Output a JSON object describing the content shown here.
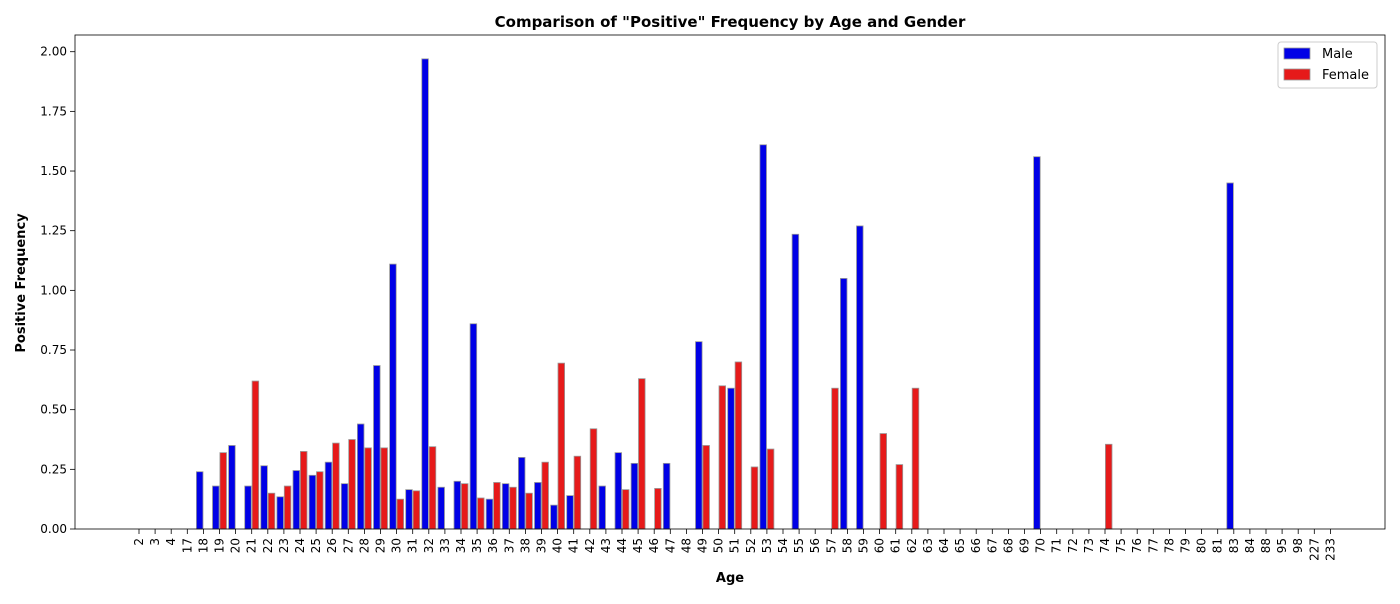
{
  "colors": {
    "male": "#0000e6",
    "female": "#e61a1a",
    "bar_edge": "#9a9a9a"
  },
  "chart_data": {
    "type": "bar",
    "title": "Comparison of \"Positive\" Frequency by Age and Gender",
    "xlabel": "Age",
    "ylabel": "Positive Frequency",
    "ylim": [
      0,
      2.07
    ],
    "yticks": [
      "0.00",
      "0.25",
      "0.50",
      "0.75",
      "1.00",
      "1.25",
      "1.50",
      "1.75",
      "2.00"
    ],
    "grid": false,
    "legend_position": "top-right",
    "categories": [
      "2",
      "3",
      "4",
      "17",
      "18",
      "19",
      "20",
      "21",
      "22",
      "23",
      "24",
      "25",
      "26",
      "27",
      "28",
      "29",
      "30",
      "31",
      "32",
      "33",
      "34",
      "35",
      "36",
      "37",
      "38",
      "39",
      "40",
      "41",
      "42",
      "43",
      "44",
      "45",
      "46",
      "47",
      "48",
      "49",
      "50",
      "51",
      "52",
      "53",
      "54",
      "55",
      "56",
      "57",
      "58",
      "59",
      "60",
      "61",
      "62",
      "63",
      "64",
      "65",
      "66",
      "67",
      "68",
      "69",
      "70",
      "71",
      "72",
      "73",
      "74",
      "75",
      "76",
      "77",
      "78",
      "79",
      "80",
      "81",
      "83",
      "84",
      "88",
      "95",
      "98",
      "227",
      "233"
    ],
    "series": [
      {
        "name": "Male",
        "values": [
          0,
          0,
          0,
          0,
          0.24,
          0.18,
          0.35,
          0.18,
          0.265,
          0.135,
          0.245,
          0.225,
          0.28,
          0.19,
          0.44,
          0.685,
          1.11,
          0.165,
          1.97,
          0.175,
          0.2,
          0.86,
          0.125,
          0.19,
          0.3,
          0.195,
          0.1,
          0.14,
          0,
          0.18,
          0.32,
          0.275,
          0,
          0.275,
          0,
          0.785,
          0,
          0.59,
          0,
          1.61,
          0,
          1.235,
          0,
          0,
          1.05,
          1.27,
          0,
          0,
          0,
          0,
          0,
          0,
          0,
          0,
          0,
          0,
          1.56,
          0,
          0,
          0,
          0,
          0,
          0,
          0,
          0,
          0,
          0,
          0,
          1.45,
          0,
          0,
          0,
          0,
          0,
          0
        ]
      },
      {
        "name": "Female",
        "values": [
          0,
          0,
          0,
          0,
          0,
          0.32,
          0,
          0.62,
          0.15,
          0.18,
          0.325,
          0.24,
          0.36,
          0.375,
          0.34,
          0.34,
          0.125,
          0.16,
          0.345,
          0,
          0.19,
          0.13,
          0.195,
          0.175,
          0.15,
          0.28,
          0.695,
          0.305,
          0.42,
          0,
          0.165,
          0.63,
          0.17,
          0,
          0,
          0.35,
          0.6,
          0.7,
          0.26,
          0.335,
          0,
          0,
          0,
          0.59,
          0,
          0,
          0.4,
          0.27,
          0.59,
          0,
          0,
          0,
          0,
          0,
          0,
          0,
          0,
          0,
          0,
          0,
          0.355,
          0,
          0,
          0,
          0,
          0,
          0,
          0,
          0,
          0,
          0,
          0,
          0,
          0,
          0
        ]
      }
    ]
  }
}
